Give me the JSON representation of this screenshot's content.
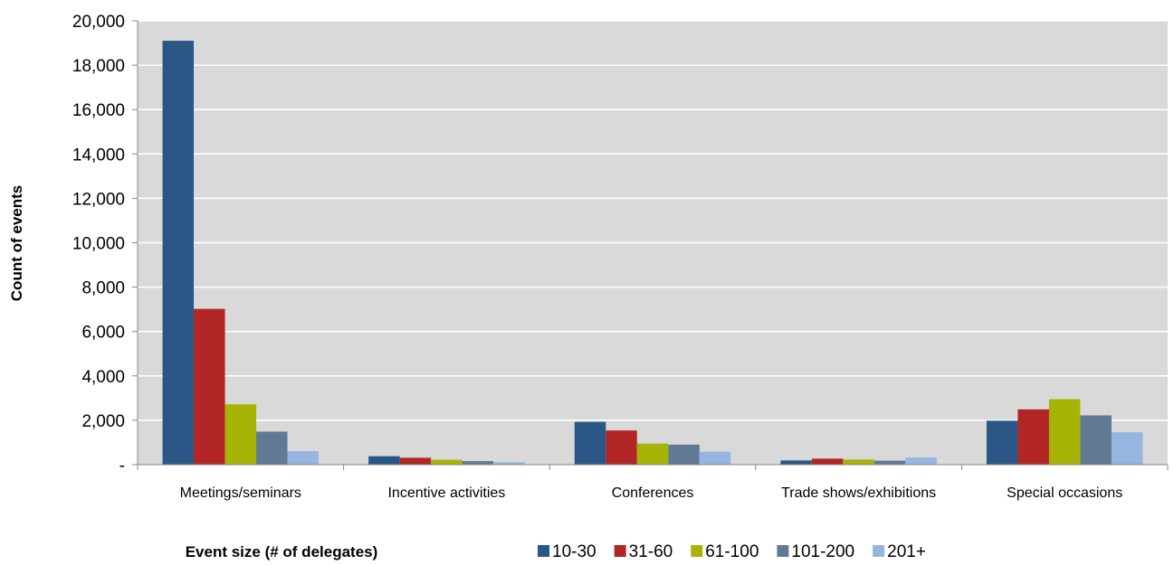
{
  "chart_data": {
    "type": "bar",
    "title": "",
    "xlabel": "Event size (# of delegates)",
    "ylabel": "Count of events",
    "ylim": [
      0,
      20000
    ],
    "yticks": [
      0,
      2000,
      4000,
      6000,
      8000,
      10000,
      12000,
      14000,
      16000,
      18000,
      20000
    ],
    "ytick_labels": [
      "-",
      "2,000",
      "4,000",
      "6,000",
      "8,000",
      "10,000",
      "12,000",
      "14,000",
      "16,000",
      "18,000",
      "20,000"
    ],
    "grid": true,
    "legend_position": "bottom",
    "categories": [
      "Meetings/seminars",
      "Incentive activities",
      "Conferences",
      "Trade shows/exhibitions",
      "Special occasions"
    ],
    "series": [
      {
        "name": "10-30",
        "color": "#2a5785",
        "values": [
          19100,
          380,
          1930,
          190,
          1980
        ]
      },
      {
        "name": "31-60",
        "color": "#b22525",
        "values": [
          7020,
          310,
          1540,
          270,
          2490
        ]
      },
      {
        "name": "61-100",
        "color": "#a7b406",
        "values": [
          2720,
          220,
          950,
          230,
          2950
        ]
      },
      {
        "name": "101-200",
        "color": "#5f7a92",
        "values": [
          1490,
          160,
          900,
          180,
          2220
        ]
      },
      {
        "name": "201+",
        "color": "#96b5e0",
        "values": [
          610,
          110,
          580,
          320,
          1460
        ]
      }
    ],
    "plot_background": "#d9d9d9",
    "grid_color": "#ffffff"
  }
}
